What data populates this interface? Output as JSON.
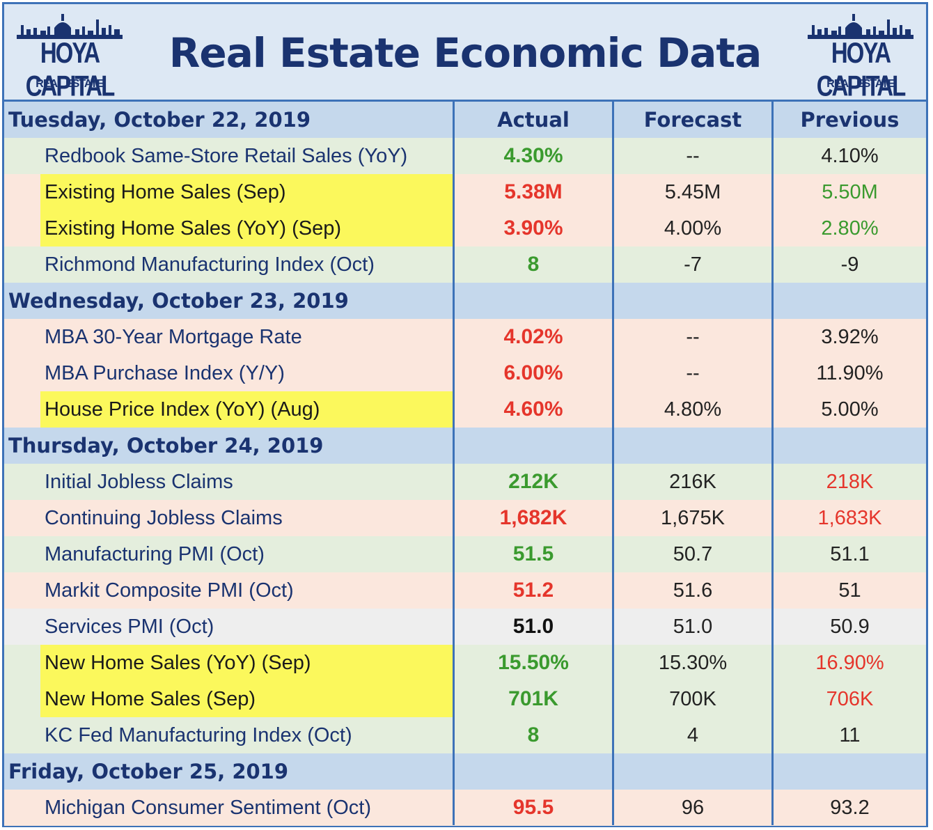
{
  "title": "Real Estate Economic Data",
  "logo": {
    "name": "HOYA CAPITAL",
    "sub": "REAL ESTATE"
  },
  "columns": {
    "actual": "Actual",
    "forecast": "Forecast",
    "previous": "Previous"
  },
  "colors": {
    "green": "#3a9a2e",
    "red": "#e5352b",
    "black": "#111111",
    "navy": "#1a3370",
    "greenBg": "#e4eedd",
    "redBg": "#fbe7dd",
    "neutralBg": "#eeeeee",
    "dayBg": "#c5d8ec",
    "highlight": "#fbf85c"
  },
  "rows": [
    {
      "type": "day",
      "label": "Tuesday, October 22, 2019",
      "header": true
    },
    {
      "type": "item",
      "name": "Redbook Same-Store Retail Sales (YoY)",
      "actual": "4.30%",
      "forecast": "--",
      "previous": "4.10%",
      "tone": "green",
      "prevTone": "none",
      "highlight": false
    },
    {
      "type": "item",
      "name": "Existing Home Sales (Sep)",
      "actual": "5.38M",
      "forecast": "5.45M",
      "previous": "5.50M",
      "tone": "red",
      "prevTone": "green",
      "highlight": true
    },
    {
      "type": "item",
      "name": "Existing Home Sales (YoY) (Sep)",
      "actual": "3.90%",
      "forecast": "4.00%",
      "previous": "2.80%",
      "tone": "red",
      "prevTone": "green",
      "highlight": true
    },
    {
      "type": "item",
      "name": "Richmond Manufacturing Index (Oct)",
      "actual": "8",
      "forecast": "-7",
      "previous": "-9",
      "tone": "green",
      "prevTone": "none",
      "highlight": false
    },
    {
      "type": "day",
      "label": "Wednesday, October 23, 2019",
      "header": false
    },
    {
      "type": "item",
      "name": "MBA 30-Year Mortgage Rate",
      "actual": "4.02%",
      "forecast": "--",
      "previous": "3.92%",
      "tone": "red",
      "prevTone": "none",
      "highlight": false
    },
    {
      "type": "item",
      "name": "MBA Purchase Index (Y/Y)",
      "actual": "6.00%",
      "forecast": "--",
      "previous": "11.90%",
      "tone": "red",
      "prevTone": "none",
      "highlight": false
    },
    {
      "type": "item",
      "name": "House Price Index (YoY) (Aug)",
      "actual": "4.60%",
      "forecast": "4.80%",
      "previous": "5.00%",
      "tone": "red",
      "prevTone": "none",
      "highlight": true
    },
    {
      "type": "day",
      "label": "Thursday, October 24, 2019",
      "header": false
    },
    {
      "type": "item",
      "name": "Initial Jobless Claims",
      "actual": "212K",
      "forecast": "216K",
      "previous": "218K",
      "tone": "green",
      "prevTone": "red",
      "highlight": false
    },
    {
      "type": "item",
      "name": "Continuing Jobless Claims",
      "actual": "1,682K",
      "forecast": "1,675K",
      "previous": "1,683K",
      "tone": "red",
      "prevTone": "red",
      "highlight": false
    },
    {
      "type": "item",
      "name": "Manufacturing PMI (Oct)",
      "actual": "51.5",
      "forecast": "50.7",
      "previous": "51.1",
      "tone": "green",
      "prevTone": "none",
      "highlight": false
    },
    {
      "type": "item",
      "name": "Markit Composite PMI (Oct)",
      "actual": "51.2",
      "forecast": "51.6",
      "previous": "51",
      "tone": "red",
      "prevTone": "none",
      "highlight": false
    },
    {
      "type": "item",
      "name": "Services PMI (Oct)",
      "actual": "51.0",
      "forecast": "51.0",
      "previous": "50.9",
      "tone": "black",
      "prevTone": "none",
      "highlight": false
    },
    {
      "type": "item",
      "name": "New Home Sales (YoY) (Sep)",
      "actual": "15.50%",
      "forecast": "15.30%",
      "previous": "16.90%",
      "tone": "green",
      "prevTone": "red",
      "highlight": true
    },
    {
      "type": "item",
      "name": "New Home Sales (Sep)",
      "actual": "701K",
      "forecast": "700K",
      "previous": "706K",
      "tone": "green",
      "prevTone": "red",
      "highlight": true
    },
    {
      "type": "item",
      "name": "KC Fed Manufacturing Index (Oct)",
      "actual": "8",
      "forecast": "4",
      "previous": "11",
      "tone": "green",
      "prevTone": "none",
      "highlight": false
    },
    {
      "type": "day",
      "label": "Friday, October 25, 2019",
      "header": false
    },
    {
      "type": "item",
      "name": "Michigan Consumer Sentiment (Oct)",
      "actual": "95.5",
      "forecast": "96",
      "previous": "93.2",
      "tone": "red",
      "prevTone": "none",
      "highlight": false
    }
  ]
}
